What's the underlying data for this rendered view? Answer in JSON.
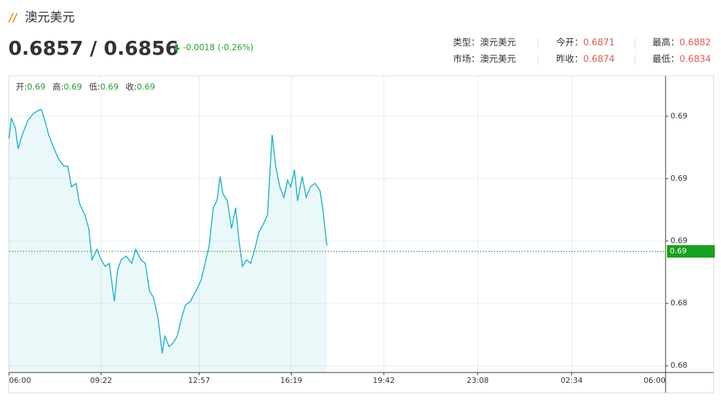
{
  "header": {
    "title": "澳元美元",
    "price": "0.6857 / 0.6856",
    "change": "-0.0018 (-0.26%)"
  },
  "info": [
    [
      {
        "label": "类型：",
        "value": "澳元美元"
      },
      {
        "label": "今开：",
        "value": "0.6871"
      },
      {
        "label": "最高：",
        "value": "0.6882"
      }
    ],
    [
      {
        "label": "市场：",
        "value": "澳元美元"
      },
      {
        "label": "昨收：",
        "value": "0.6874"
      },
      {
        "label": "最低：",
        "value": "0.6834"
      }
    ]
  ],
  "chart_data": {
    "type": "line",
    "ohlc_legend": [
      {
        "label": "开:",
        "value": "0.69"
      },
      {
        "label": "高:",
        "value": "0.69"
      },
      {
        "label": "低:",
        "value": "0.69"
      },
      {
        "label": "收:",
        "value": "0.69"
      }
    ],
    "x": [
      0,
      5,
      14,
      20,
      29,
      41,
      52,
      64,
      71,
      79,
      87,
      99,
      109,
      120,
      129,
      137,
      147,
      155,
      166,
      175,
      182,
      193,
      202,
      211,
      220,
      231,
      238,
      246,
      257,
      269,
      278,
      289,
      299,
      308,
      317,
      327,
      336,
      342,
      351,
      360,
      369,
      378,
      387,
      398,
      410,
      421,
      430,
      439,
      448,
      456,
      463,
      469,
      479,
      488,
      497,
      504,
      512,
      521,
      530,
      539,
      548,
      557,
      567,
      573,
      577,
      585,
      594,
      603,
      611,
      618,
      626,
      633,
      643,
      652,
      661,
      671,
      682,
      688,
      697
    ],
    "series": [
      {
        "color": "#1fb3c8",
        "values": [
          0.68777,
          0.68817,
          0.68797,
          0.68757,
          0.68784,
          0.68811,
          0.68824,
          0.68831,
          0.68833,
          0.68811,
          0.68784,
          0.68757,
          0.68737,
          0.68724,
          0.68724,
          0.68684,
          0.68691,
          0.68651,
          0.68631,
          0.68604,
          0.68544,
          0.68564,
          0.68544,
          0.68531,
          0.68537,
          0.68464,
          0.68524,
          0.68544,
          0.68551,
          0.68537,
          0.68564,
          0.68544,
          0.68537,
          0.68484,
          0.68471,
          0.68431,
          0.68364,
          0.68397,
          0.68377,
          0.68384,
          0.68397,
          0.68431,
          0.68457,
          0.68464,
          0.68484,
          0.68504,
          0.68537,
          0.68571,
          0.68644,
          0.68657,
          0.68704,
          0.68671,
          0.68657,
          0.68604,
          0.68644,
          0.68584,
          0.68531,
          0.68544,
          0.68537,
          0.68564,
          0.68597,
          0.68611,
          0.68631,
          0.68724,
          0.68784,
          0.68724,
          0.68684,
          0.68664,
          0.68697,
          0.68684,
          0.68717,
          0.68657,
          0.68704,
          0.68664,
          0.68684,
          0.68691,
          0.68677,
          0.68644,
          0.68571
        ]
      }
    ],
    "current": {
      "value": 0.6856,
      "label": "0.69"
    },
    "xlim": [
      0,
      1440
    ],
    "xticks": [
      {
        "value": 0,
        "label": "06:00"
      },
      {
        "value": 202,
        "label": "09:22"
      },
      {
        "value": 417,
        "label": "12:57"
      },
      {
        "value": 619,
        "label": "16:19"
      },
      {
        "value": 822,
        "label": "19:42"
      },
      {
        "value": 1028,
        "label": "23:08"
      },
      {
        "value": 1234,
        "label": "02:34"
      },
      {
        "value": 1440,
        "label": "06:00"
      }
    ],
    "ylim": [
      0.68327,
      0.68897
    ],
    "yticks": [
      {
        "value": 0.6882,
        "label": "0.69"
      },
      {
        "value": 0.687,
        "label": "0.69"
      },
      {
        "value": 0.6858,
        "label": "0.69"
      },
      {
        "value": 0.6846,
        "label": "0.68"
      },
      {
        "value": 0.6834,
        "label": "0.68"
      }
    ],
    "grid": true
  }
}
